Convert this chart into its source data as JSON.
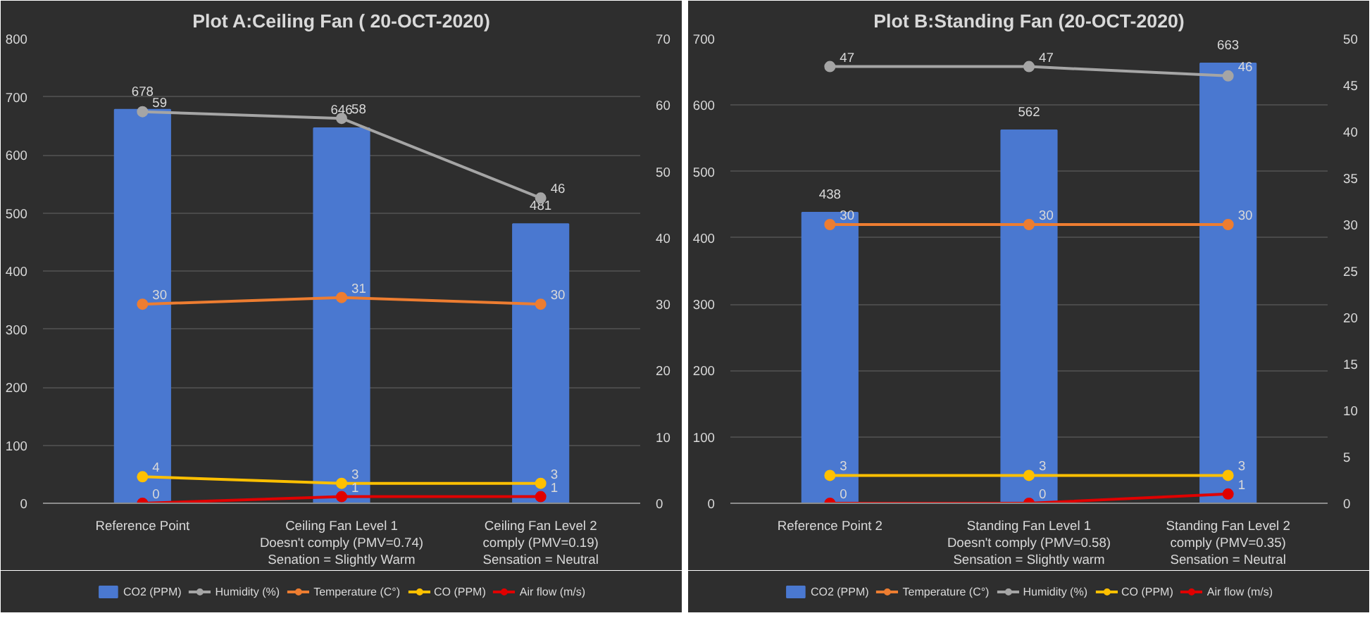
{
  "chart_data": [
    {
      "type": "bar",
      "title": "Plot A:Ceiling Fan ( 20-OCT-2020)",
      "categories": [
        "Reference Point",
        "Ceiling Fan Level 1\nDoesn't comply (PMV=0.74)\nSenation = Slightly Warm",
        "Ceiling Fan Level 2\ncomply (PMV=0.19)\nSensation = Neutral"
      ],
      "series": [
        {
          "name": "CO2 (PPM)",
          "color": "#4a78d0",
          "values": [
            678,
            646,
            481
          ]
        },
        {
          "name": "Humidity (%)",
          "type": "line",
          "axis": "y2",
          "color": "#a5a5a5",
          "values": [
            59,
            58,
            46
          ]
        },
        {
          "name": "Temperature (C°)",
          "type": "line",
          "axis": "y2",
          "color": "#ed7d31",
          "values": [
            30,
            31,
            30
          ]
        },
        {
          "name": "CO (PPM)",
          "type": "line",
          "axis": "y2",
          "color": "#ffc000",
          "values": [
            4,
            3,
            3
          ]
        },
        {
          "name": "Air flow (m/s)",
          "type": "line",
          "axis": "y2",
          "color": "#e00000",
          "values": [
            0,
            1,
            1
          ]
        }
      ],
      "ylim": [
        0,
        800
      ],
      "yticks": [
        0,
        100,
        200,
        300,
        400,
        500,
        600,
        700,
        800
      ],
      "y2lim": [
        0,
        70
      ],
      "y2ticks": [
        0,
        10,
        20,
        30,
        40,
        50,
        60,
        70
      ],
      "data_labels": true,
      "grid": "y",
      "legend": "bottom",
      "marker": "circle"
    },
    {
      "type": "bar",
      "title": "Plot B:Standing Fan (20-OCT-2020)",
      "categories": [
        "Reference Point 2",
        "Standing Fan Level 1\nDoesn't comply (PMV=0.58)\nSensation = Slightly warm",
        "Standing Fan Level 2\ncomply (PMV=0.35)\nSensation = Neutral"
      ],
      "series": [
        {
          "name": "CO2 (PPM)",
          "color": "#4a78d0",
          "values": [
            438,
            562,
            663
          ]
        },
        {
          "name": "Temperature (C°)",
          "type": "line",
          "axis": "y2",
          "color": "#ed7d31",
          "values": [
            30,
            30,
            30
          ]
        },
        {
          "name": "Humidity (%)",
          "type": "line",
          "axis": "y2",
          "color": "#a5a5a5",
          "values": [
            47,
            47,
            46
          ]
        },
        {
          "name": "CO (PPM)",
          "type": "line",
          "axis": "y2",
          "color": "#ffc000",
          "values": [
            3,
            3,
            3
          ]
        },
        {
          "name": "Air flow (m/s)",
          "type": "line",
          "axis": "y2",
          "color": "#e00000",
          "values": [
            0,
            0,
            1
          ]
        }
      ],
      "ylim": [
        0,
        700
      ],
      "yticks": [
        0,
        100,
        200,
        300,
        400,
        500,
        600,
        700
      ],
      "y2lim": [
        0,
        50
      ],
      "y2ticks": [
        0,
        5,
        10,
        15,
        20,
        25,
        30,
        35,
        40,
        45,
        50
      ],
      "data_labels": true,
      "grid": "y",
      "legend": "bottom",
      "marker": "circle"
    }
  ]
}
